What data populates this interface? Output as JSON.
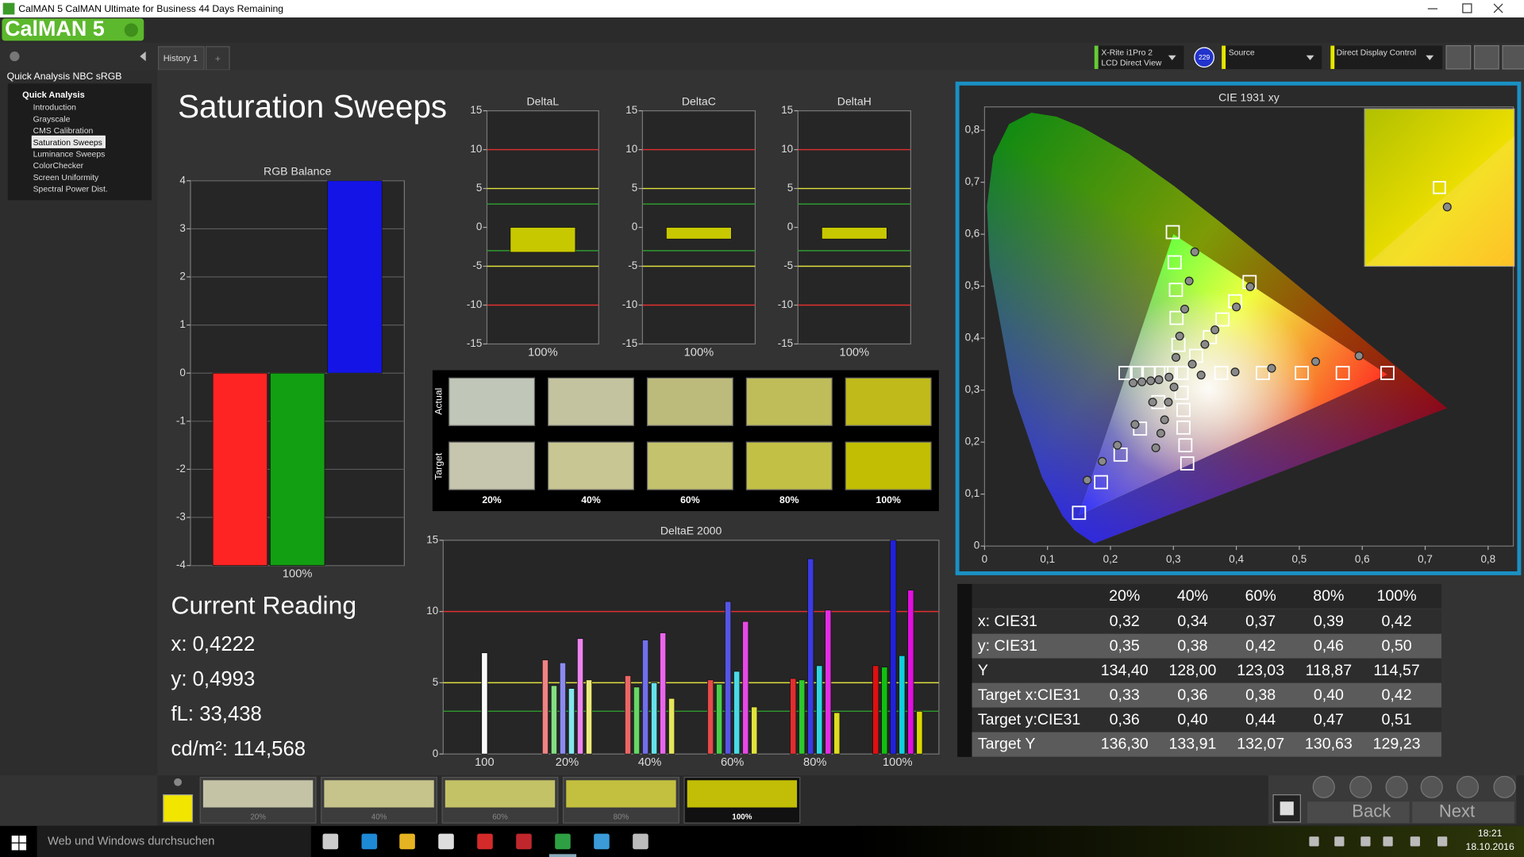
{
  "window": {
    "title": "CalMAN 5 CalMAN Ultimate for Business 44 Days Remaining"
  },
  "app": {
    "logo": "CalMAN 5",
    "tabs": [
      "History 1",
      "+"
    ],
    "meter": [
      "X-Rite i1Pro 2",
      "LCD Direct View"
    ],
    "badge": "229",
    "source": "Source",
    "display_control": "Direct Display Control"
  },
  "sidebar": {
    "title": "Quick Analysis NBC sRGB",
    "group": "Quick Analysis",
    "items": [
      "Introduction",
      "Grayscale",
      "CMS Calibration",
      "Saturation Sweeps",
      "Luminance Sweeps",
      "ColorChecker",
      "Screen Uniformity",
      "Spectral Power Dist."
    ],
    "selected": 3
  },
  "page_title": "Saturation Sweeps",
  "swatches": {
    "rows": [
      "Actual",
      "Target"
    ],
    "columns": [
      "20%",
      "40%",
      "60%",
      "80%",
      "100%"
    ],
    "actual_colors": [
      "#c0c6b8",
      "#c3c3a0",
      "#bdbb7c",
      "#bfbd5a",
      "#c0ba1a"
    ],
    "target_colors": [
      "#c6c5ad",
      "#c8c692",
      "#c4c26c",
      "#c3c046",
      "#c1be04"
    ]
  },
  "current_reading": {
    "title": "Current Reading",
    "lines": [
      "x: 0,4222",
      "y: 0,4993",
      "fL: 33,438",
      "cd/m²: 114,568"
    ]
  },
  "table": {
    "columns": [
      "20%",
      "40%",
      "60%",
      "80%",
      "100%"
    ],
    "rows": [
      [
        "x: CIE31",
        "0,32",
        "0,34",
        "0,37",
        "0,39",
        "0,42"
      ],
      [
        "y: CIE31",
        "0,35",
        "0,38",
        "0,42",
        "0,46",
        "0,50"
      ],
      [
        "Y",
        "134,40",
        "128,00",
        "123,03",
        "118,87",
        "114,57"
      ],
      [
        "Target x:CIE31",
        "0,33",
        "0,36",
        "0,38",
        "0,40",
        "0,42"
      ],
      [
        "Target y:CIE31",
        "0,36",
        "0,40",
        "0,44",
        "0,47",
        "0,51"
      ],
      [
        "Target Y",
        "136,30",
        "133,91",
        "132,07",
        "130,63",
        "129,23"
      ]
    ]
  },
  "sweep_buttons": {
    "current_color": "#f2e600",
    "labels": [
      "20%",
      "40%",
      "60%",
      "80%",
      "100%"
    ],
    "colors": [
      "#c4c3a6",
      "#c6c48a",
      "#c4c266",
      "#c3c040",
      "#c2bd06"
    ],
    "selected": 4
  },
  "navigation": {
    "back": "Back",
    "next": "Next"
  },
  "taskbar": {
    "search": "Web und Windows durchsuchen",
    "time": "18:21",
    "date": "18.10.2016"
  },
  "chart_data": [
    {
      "type": "bar",
      "title": "RGB Balance",
      "categories": [
        "100%"
      ],
      "series": [
        {
          "color": "#ff2424",
          "values": [
            -4
          ]
        },
        {
          "color": "#12a012",
          "values": [
            -4
          ]
        },
        {
          "color": "#1414e6",
          "values": [
            4
          ]
        }
      ],
      "ylim": [
        -4,
        4
      ],
      "yticks": [
        4,
        3,
        2,
        1,
        0,
        -1,
        -2,
        -3,
        -4
      ],
      "grid": true
    },
    {
      "type": "bar",
      "title": "DeltaL",
      "categories": [
        "100%"
      ],
      "values": [
        -3.2
      ],
      "color": "#c8c800",
      "ylim": [
        -15,
        15
      ],
      "yticks": [
        15,
        10,
        5,
        0,
        -5,
        -10,
        -15
      ],
      "grid": false,
      "ref_lines": [
        {
          "value": 10,
          "color": "#e03030"
        },
        {
          "value": -10,
          "color": "#e03030"
        },
        {
          "value": 5,
          "color": "#e0e040"
        },
        {
          "value": -5,
          "color": "#e0e040"
        },
        {
          "value": 3,
          "color": "#2f9a2f"
        },
        {
          "value": -3,
          "color": "#2f9a2f"
        }
      ]
    },
    {
      "type": "bar",
      "title": "DeltaC",
      "categories": [
        "100%"
      ],
      "values": [
        -1.5
      ],
      "color": "#c8c800",
      "ylim": [
        -15,
        15
      ],
      "yticks": [
        15,
        10,
        5,
        0,
        -5,
        -10,
        -15
      ],
      "grid": false,
      "ref_lines": [
        {
          "value": 10,
          "color": "#e03030"
        },
        {
          "value": -10,
          "color": "#e03030"
        },
        {
          "value": 5,
          "color": "#e0e040"
        },
        {
          "value": -5,
          "color": "#e0e040"
        },
        {
          "value": 3,
          "color": "#2f9a2f"
        },
        {
          "value": -3,
          "color": "#2f9a2f"
        }
      ]
    },
    {
      "type": "bar",
      "title": "DeltaH",
      "categories": [
        "100%"
      ],
      "values": [
        -1.5
      ],
      "color": "#c8c800",
      "ylim": [
        -15,
        15
      ],
      "yticks": [
        15,
        10,
        5,
        0,
        -5,
        -10,
        -15
      ],
      "grid": false,
      "ref_lines": [
        {
          "value": 10,
          "color": "#e03030"
        },
        {
          "value": -10,
          "color": "#e03030"
        },
        {
          "value": 5,
          "color": "#e0e040"
        },
        {
          "value": -5,
          "color": "#e0e040"
        },
        {
          "value": 3,
          "color": "#2f9a2f"
        },
        {
          "value": -3,
          "color": "#2f9a2f"
        }
      ]
    },
    {
      "type": "bar",
      "title": "DeltaE 2000",
      "categories": [
        "100",
        "20%",
        "40%",
        "60%",
        "80%",
        "100%"
      ],
      "series": [
        {
          "color": "#f4f4f4",
          "values": [
            7.1,
            null,
            null,
            null,
            null,
            null
          ]
        },
        {
          "color": "#e01010",
          "values": [
            null,
            6.6,
            5.5,
            5.2,
            5.3,
            6.2
          ]
        },
        {
          "color": "#10c010",
          "values": [
            null,
            4.8,
            4.7,
            4.9,
            5.2,
            6.1
          ]
        },
        {
          "color": "#2020e0",
          "values": [
            null,
            6.4,
            8.0,
            10.7,
            13.7,
            15
          ]
        },
        {
          "color": "#10d0e0",
          "values": [
            null,
            4.6,
            5.0,
            5.8,
            6.2,
            6.9
          ]
        },
        {
          "color": "#e010e0",
          "values": [
            null,
            8.1,
            8.5,
            9.3,
            10.1,
            11.5
          ]
        },
        {
          "color": "#d8d800",
          "values": [
            null,
            5.2,
            3.9,
            3.3,
            2.9,
            3.0
          ]
        }
      ],
      "ylim": [
        0,
        15
      ],
      "yticks": [
        0,
        5,
        10,
        15
      ],
      "grid": false,
      "ref_lines": [
        {
          "value": 10,
          "color": "#e03030"
        },
        {
          "value": 5,
          "color": "#e0e040"
        },
        {
          "value": 3,
          "color": "#2f9a2f"
        }
      ]
    },
    {
      "type": "scatter",
      "title": "CIE 1931 xy",
      "xlim": [
        0,
        0.84
      ],
      "ylim": [
        0,
        0.845
      ],
      "xticks": [
        0,
        {
          "value": 0.1,
          "label": "0,1"
        },
        {
          "value": 0.2,
          "label": "0,2"
        },
        {
          "value": 0.3,
          "label": "0,3"
        },
        {
          "value": 0.4,
          "label": "0,4"
        },
        {
          "value": 0.5,
          "label": "0,5"
        },
        {
          "value": 0.6,
          "label": "0,6"
        },
        {
          "value": 0.7,
          "label": "0,7"
        },
        {
          "value": 0.8,
          "label": "0,8"
        }
      ],
      "yticks": [
        0,
        {
          "value": 0.1,
          "label": "0,1"
        },
        {
          "value": 0.2,
          "label": "0,2"
        },
        {
          "value": 0.3,
          "label": "0,3"
        },
        {
          "value": 0.4,
          "label": "0,4"
        },
        {
          "value": 0.5,
          "label": "0,5"
        },
        {
          "value": 0.6,
          "label": "0,6"
        },
        {
          "value": 0.7,
          "label": "0,7"
        },
        {
          "value": 0.8,
          "label": "0,8"
        }
      ],
      "locus": {
        "x": [
          0.1741,
          0.144,
          0.1241,
          0.0913,
          0.0454,
          0.0082,
          0.0039,
          0.0139,
          0.0389,
          0.0743,
          0.1142,
          0.1547,
          0.2296,
          0.3016,
          0.3731,
          0.4441,
          0.5125,
          0.5752,
          0.627,
          0.6915,
          0.7347
        ],
        "y": [
          0.005,
          0.0297,
          0.0578,
          0.1327,
          0.295,
          0.5384,
          0.6548,
          0.7502,
          0.812,
          0.8338,
          0.8262,
          0.8059,
          0.7543,
          0.6923,
          0.6245,
          0.5547,
          0.4866,
          0.4242,
          0.3725,
          0.3083,
          0.2653
        ]
      },
      "gamut": {
        "x": [
          0.64,
          0.3,
          0.15
        ],
        "y": [
          0.33,
          0.6,
          0.06
        ]
      },
      "series": [
        {
          "marker": "square",
          "color": "#ffffff",
          "x": [
            0.376,
            0.442,
            0.504,
            0.569,
            0.64,
            0.299,
            0.302,
            0.304,
            0.305,
            0.308,
            0.15,
            0.185,
            0.216,
            0.247,
            0.276,
            0.224,
            0.242,
            0.26,
            0.281,
            0.296,
            0.322,
            0.319,
            0.316,
            0.316,
            0.313,
            0.421,
            0.398,
            0.378,
            0.358,
            0.336,
            0.313
          ],
          "y": [
            0.333,
            0.333,
            0.333,
            0.333,
            0.333,
            0.604,
            0.546,
            0.493,
            0.439,
            0.387,
            0.064,
            0.123,
            0.176,
            0.226,
            0.277,
            0.333,
            0.333,
            0.333,
            0.333,
            0.333,
            0.159,
            0.194,
            0.228,
            0.262,
            0.295,
            0.508,
            0.471,
            0.436,
            0.402,
            0.366,
            0.333
          ]
        },
        {
          "marker": "circle",
          "color": "#8a8a8a",
          "x": [
            0.344,
            0.398,
            0.456,
            0.526,
            0.595,
            0.334,
            0.325,
            0.318,
            0.31,
            0.304,
            0.163,
            0.187,
            0.211,
            0.239,
            0.267,
            0.236,
            0.25,
            0.264,
            0.277,
            0.293,
            0.272,
            0.28,
            0.286,
            0.292,
            0.301,
            0.422,
            0.4,
            0.366,
            0.35,
            0.33
          ],
          "y": [
            0.329,
            0.335,
            0.342,
            0.355,
            0.366,
            0.566,
            0.51,
            0.456,
            0.404,
            0.363,
            0.127,
            0.163,
            0.194,
            0.234,
            0.277,
            0.314,
            0.316,
            0.318,
            0.32,
            0.325,
            0.189,
            0.217,
            0.243,
            0.277,
            0.306,
            0.499,
            0.46,
            0.416,
            0.388,
            0.35
          ]
        }
      ]
    }
  ]
}
